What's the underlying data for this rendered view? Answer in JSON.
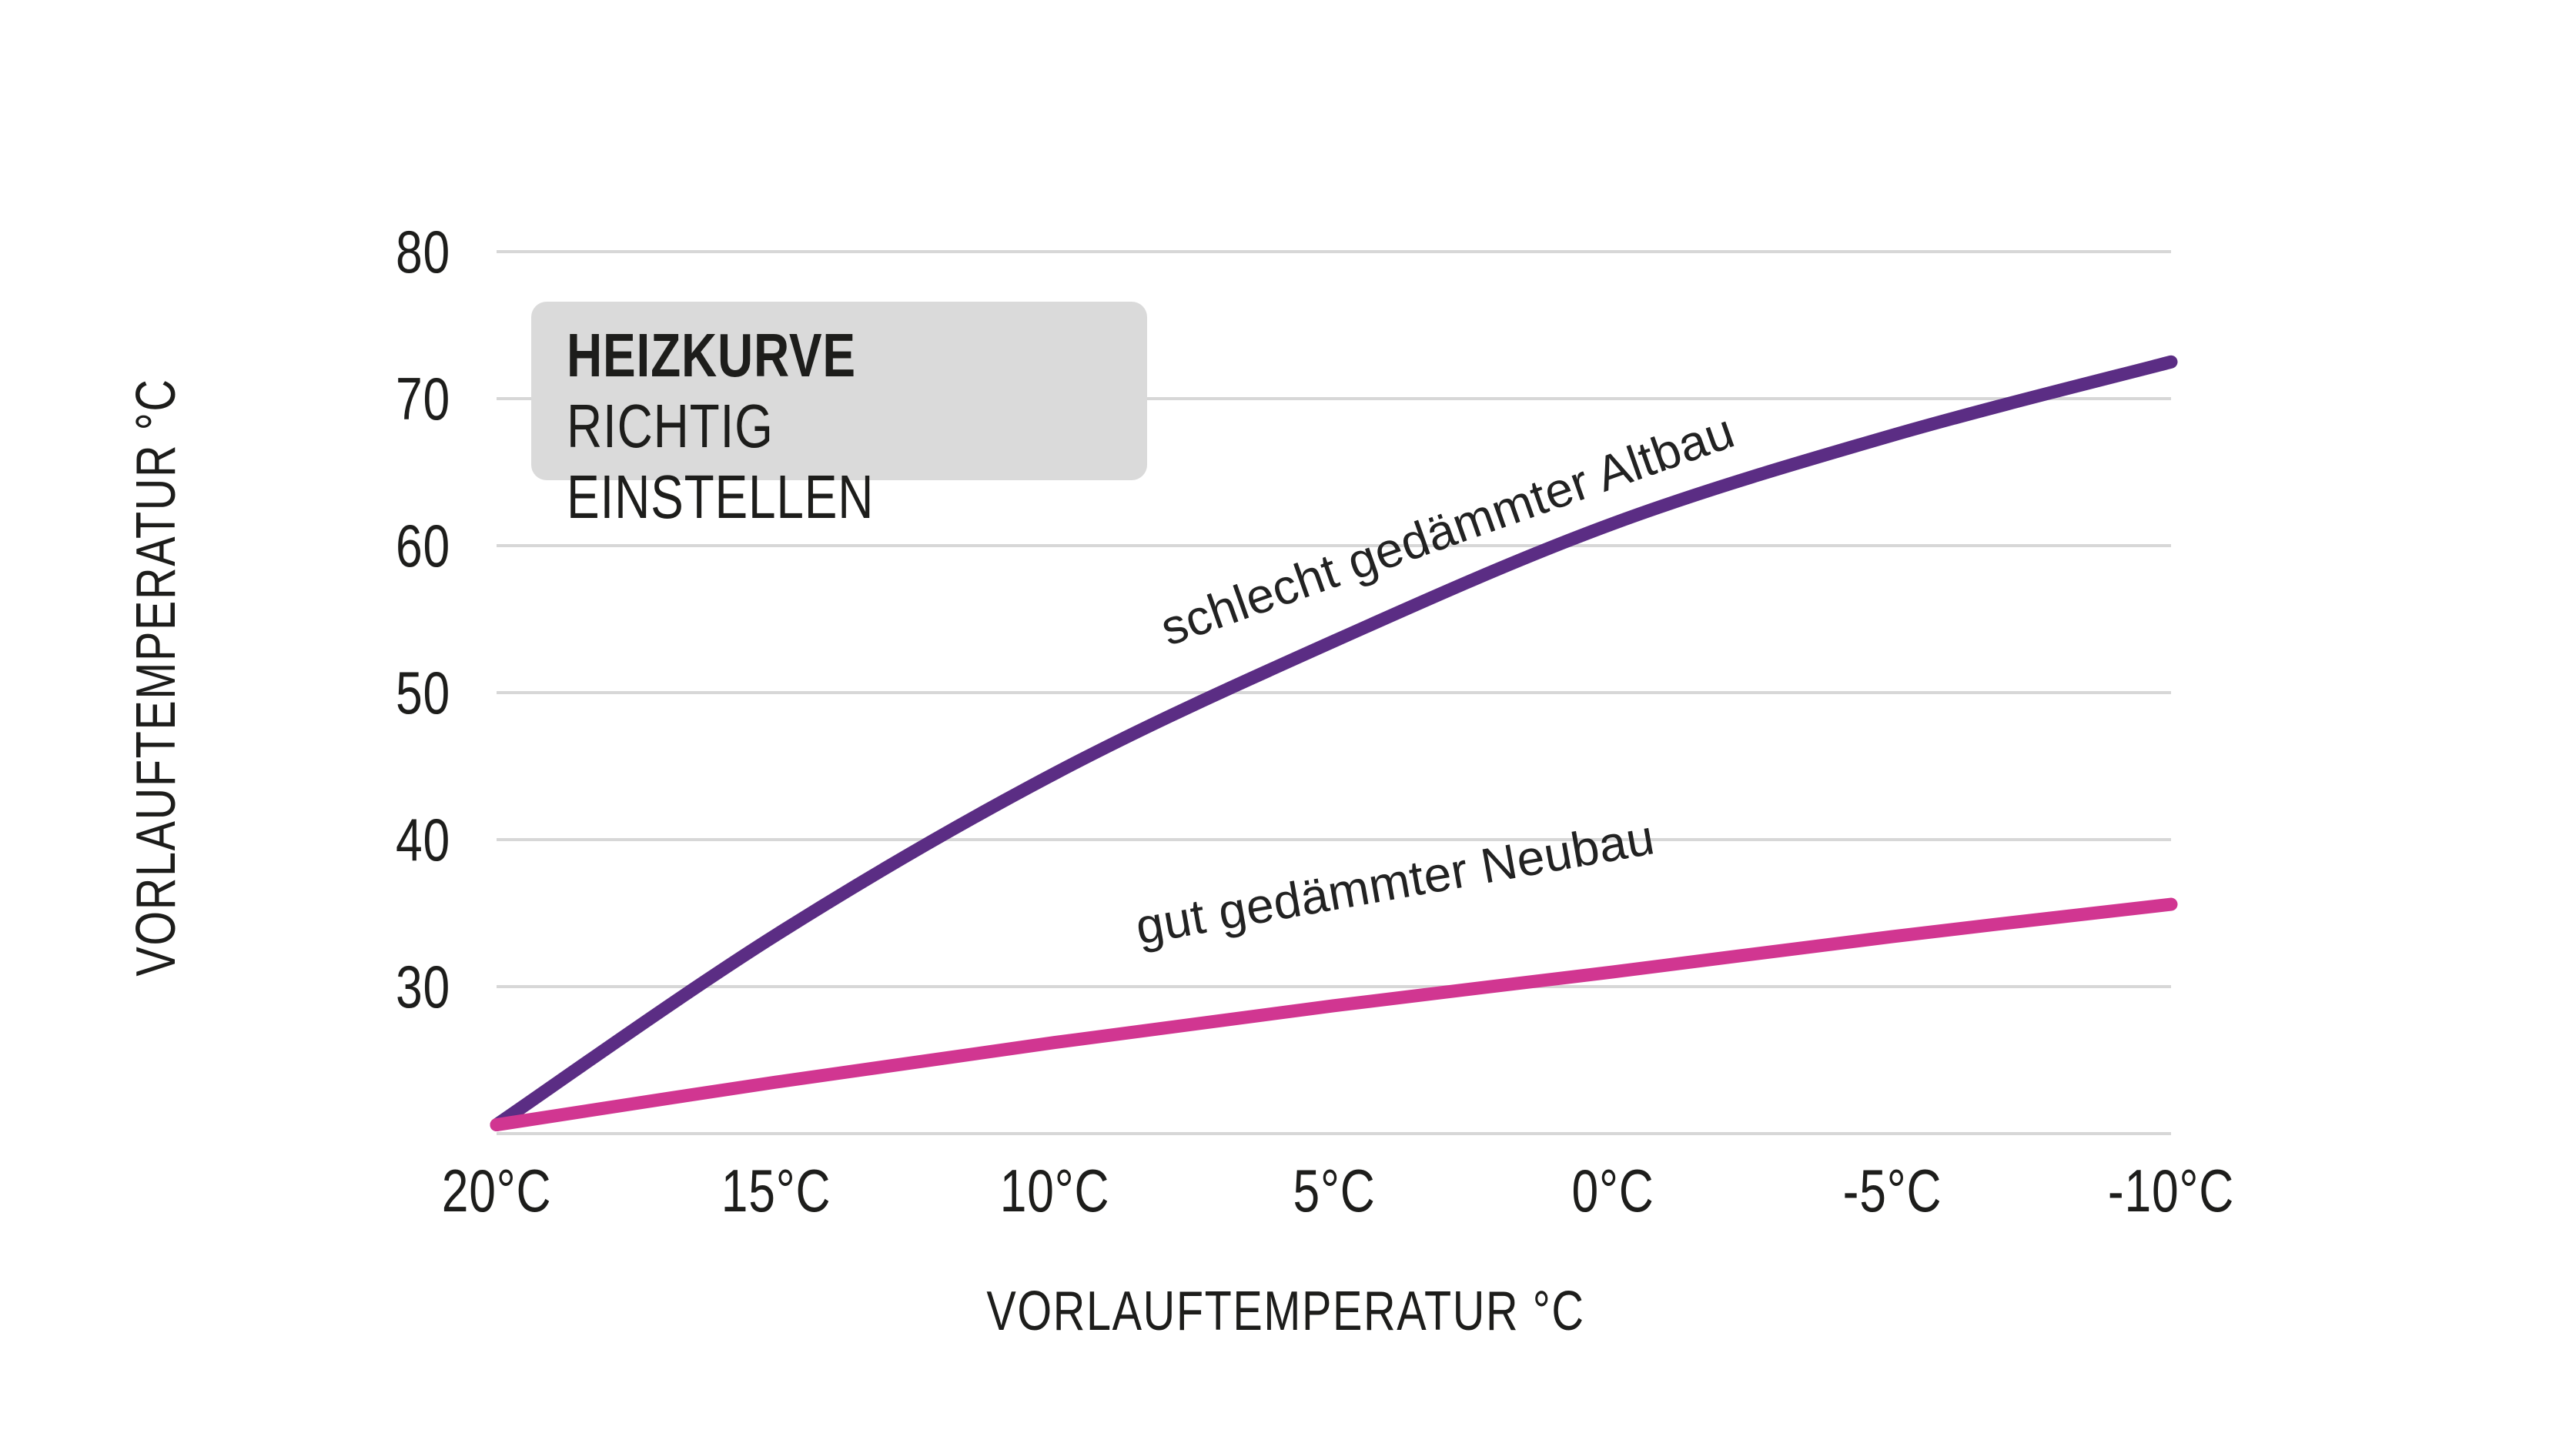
{
  "title": {
    "line1": "HEIZKURVE",
    "line2": "RICHTIG EINSTELLEN"
  },
  "colors": {
    "altbau_curve": "#5b2d84",
    "neubau_curve": "#d13691",
    "gridline": "#d7d7d7",
    "title_box_bg": "#dadada",
    "text": "#1d1d1b"
  },
  "chart_data": {
    "type": "line",
    "title": "HEIZKURVE RICHTIG EINSTELLEN",
    "xlabel": "VORLAUFTEMPERATUR °C",
    "ylabel": "VORLAUFTEMPERATUR °C",
    "x": [
      20,
      15,
      10,
      5,
      0,
      -5,
      -10
    ],
    "xtick_labels": [
      "20°C",
      "15°C",
      "10°C",
      "5°C",
      "0°C",
      "-5°C",
      "-10°C"
    ],
    "yticks": [
      80,
      70,
      60,
      50,
      40,
      30
    ],
    "ytick_labels": [
      "80",
      "70",
      "60",
      "50",
      "40",
      "30"
    ],
    "ybaseline": 20,
    "ylim": [
      20,
      86
    ],
    "xlim": [
      20,
      -10
    ],
    "grid": "horizontal",
    "legend_position": "inline-rotated-labels",
    "series": [
      {
        "name": "schlecht gedämmter Altbau",
        "color": "#5b2d84",
        "values": [
          20.6,
          33.5,
          44.5,
          53.5,
          61.5,
          67.5,
          72.5
        ]
      },
      {
        "name": "gut gedämmter Neubau",
        "color": "#d13691",
        "values": [
          20.6,
          23.5,
          26.2,
          28.7,
          31.0,
          33.4,
          35.6
        ]
      }
    ]
  }
}
